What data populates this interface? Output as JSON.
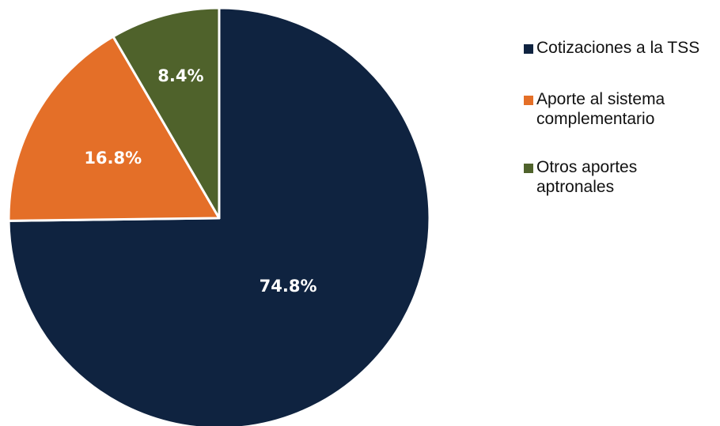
{
  "chart_data": {
    "type": "pie",
    "title": "",
    "start_angle_deg": 0,
    "direction": "clockwise",
    "slices": [
      {
        "name": "Cotizaciones a la TSS",
        "value": 74.8,
        "label": "74.8%",
        "color": "#0f2340"
      },
      {
        "name": "Aporte al sistema complementario",
        "value": 16.8,
        "label": "16.8%",
        "color": "#e46f28"
      },
      {
        "name": "Otros aportes aptronales",
        "value": 8.4,
        "label": "8.4%",
        "color": "#4f622b"
      }
    ],
    "legend": {
      "position": "right",
      "entries": [
        {
          "line1": "Cotizaciones a la TSS",
          "line2": "",
          "color": "#0f2340"
        },
        {
          "line1": "Aporte al sistema",
          "line2": "complementario",
          "color": "#e46f28"
        },
        {
          "line1": "Otros aportes",
          "line2": "aptronales",
          "color": "#4f622b"
        }
      ]
    }
  }
}
